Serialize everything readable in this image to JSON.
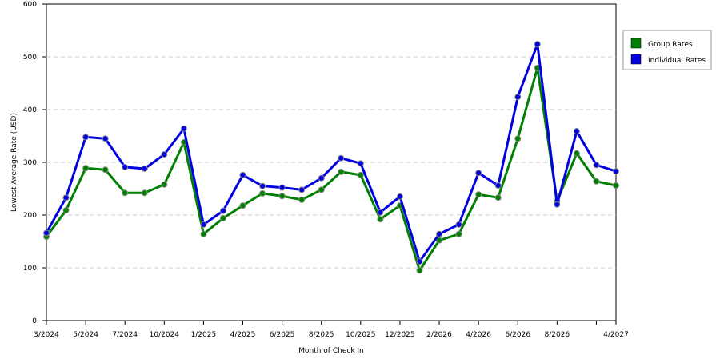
{
  "chart_data": {
    "type": "line",
    "x_label": "Month of Check In",
    "y_label": "Lowest Average Rate (USD)",
    "categories": [
      "3/2024",
      null,
      "5/2024",
      null,
      "7/2024",
      null,
      "10/2024",
      null,
      "1/2025",
      null,
      "4/2025",
      null,
      "6/2025",
      null,
      "8/2025",
      null,
      "10/2025",
      null,
      "12/2025",
      null,
      "2/2026",
      null,
      "4/2026",
      null,
      "6/2026",
      null,
      "8/2026",
      null,
      null,
      "4/2027"
    ],
    "series": [
      {
        "name": "Group Rates",
        "color": "#008000",
        "values": [
          159,
          209,
          289,
          286,
          242,
          242,
          258,
          338,
          164,
          194,
          218,
          241,
          236,
          229,
          248,
          282,
          276,
          192,
          218,
          95,
          152,
          164,
          239,
          233,
          345,
          479,
          226,
          317,
          264,
          256
        ]
      },
      {
        "name": "Individual Rates",
        "color": "#0000e0",
        "values": [
          166,
          233,
          348,
          345,
          291,
          288,
          315,
          364,
          182,
          208,
          276,
          255,
          252,
          248,
          270,
          308,
          298,
          205,
          235,
          112,
          164,
          182,
          280,
          256,
          424,
          524,
          220,
          359,
          295,
          283
        ]
      }
    ],
    "ylim": [
      0,
      600
    ],
    "yticks": [
      0,
      100,
      200,
      300,
      400,
      500,
      600
    ],
    "grid": true,
    "legend": "right"
  }
}
